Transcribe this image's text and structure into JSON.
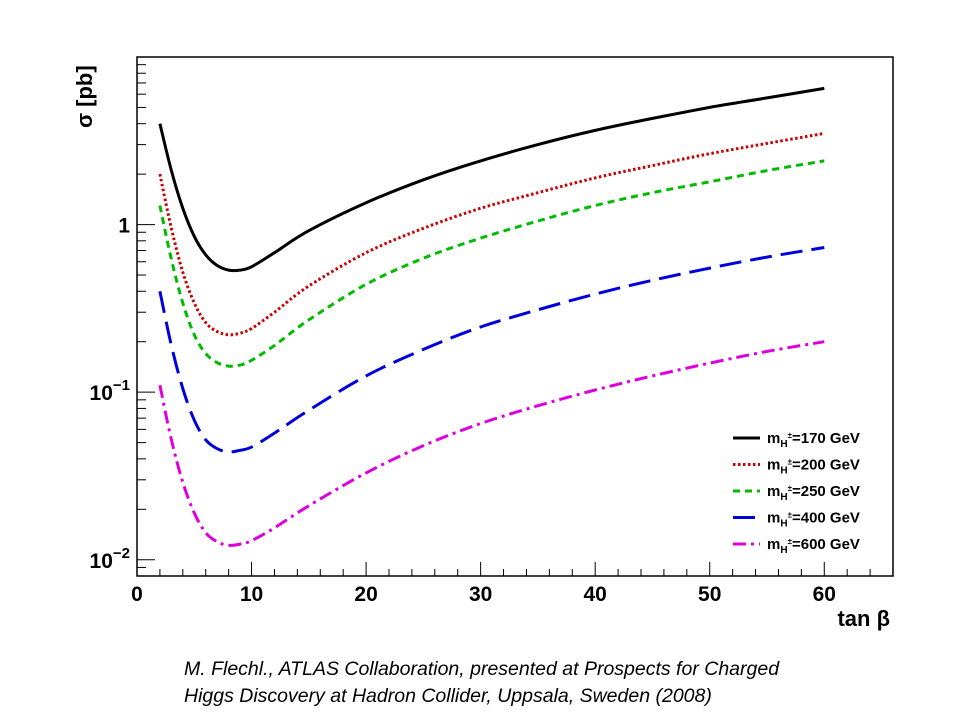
{
  "chart_data": {
    "type": "line",
    "y_scale": "log",
    "xlabel": "tan β",
    "ylabel": "σ [pb]",
    "xlim": [
      0,
      66
    ],
    "ylim": [
      0.008,
      10
    ],
    "x_ticks": [
      0,
      10,
      20,
      30,
      40,
      50,
      60
    ],
    "x_tick_labels": [
      "0",
      "10",
      "20",
      "30",
      "40",
      "50",
      "60"
    ],
    "y_tick_labels": [
      {
        "value": 1,
        "base": "1",
        "exp": ""
      },
      {
        "value": 0.1,
        "base": "10",
        "exp": "−1"
      },
      {
        "value": 0.01,
        "base": "10",
        "exp": "−2"
      }
    ],
    "grid": false,
    "legend_position": "bottom-right",
    "series": [
      {
        "name": "m_{H±}=170 GeV",
        "mass": "170",
        "color": "#000000",
        "style": "solid",
        "x": [
          2,
          3,
          4,
          5,
          6,
          7,
          8,
          9,
          10,
          12,
          15,
          20,
          25,
          30,
          35,
          40,
          45,
          50,
          55,
          60
        ],
        "y": [
          4.0,
          2.1,
          1.25,
          0.85,
          0.66,
          0.57,
          0.535,
          0.535,
          0.56,
          0.68,
          0.92,
          1.35,
          1.85,
          2.4,
          3.0,
          3.65,
          4.3,
          5.0,
          5.7,
          6.5
        ]
      },
      {
        "name": "m_{H±}=200 GeV",
        "mass": "200",
        "color": "#cc0000",
        "style": "dotted",
        "x": [
          2,
          3,
          4,
          5,
          6,
          7,
          8,
          9,
          10,
          12,
          15,
          20,
          25,
          30,
          35,
          40,
          45,
          50,
          55,
          60
        ],
        "y": [
          2.0,
          0.95,
          0.52,
          0.34,
          0.26,
          0.23,
          0.22,
          0.225,
          0.24,
          0.3,
          0.43,
          0.68,
          0.95,
          1.25,
          1.55,
          1.9,
          2.25,
          2.65,
          3.05,
          3.5
        ]
      },
      {
        "name": "m_{H±}=250 GeV",
        "mass": "250",
        "color": "#00bb00",
        "style": "dashed",
        "x": [
          2,
          3,
          4,
          5,
          6,
          7,
          8,
          9,
          10,
          12,
          15,
          20,
          25,
          30,
          35,
          40,
          45,
          50,
          55,
          60
        ],
        "y": [
          1.3,
          0.62,
          0.34,
          0.22,
          0.17,
          0.15,
          0.143,
          0.145,
          0.155,
          0.19,
          0.27,
          0.44,
          0.63,
          0.83,
          1.05,
          1.3,
          1.55,
          1.8,
          2.1,
          2.4
        ]
      },
      {
        "name": "m_{H±}=400 GeV",
        "mass": "400",
        "color": "#0000dd",
        "style": "longdash",
        "x": [
          2,
          3,
          4,
          5,
          6,
          7,
          8,
          9,
          10,
          12,
          15,
          20,
          25,
          30,
          35,
          40,
          45,
          50,
          55,
          60
        ],
        "y": [
          0.4,
          0.19,
          0.105,
          0.068,
          0.052,
          0.046,
          0.044,
          0.045,
          0.047,
          0.057,
          0.078,
          0.125,
          0.18,
          0.245,
          0.31,
          0.385,
          0.465,
          0.55,
          0.64,
          0.73
        ]
      },
      {
        "name": "m_{H±}=600 GeV",
        "mass": "600",
        "color": "#dd00dd",
        "style": "dashdot",
        "x": [
          2,
          3,
          4,
          5,
          6,
          7,
          8,
          9,
          10,
          12,
          15,
          20,
          25,
          30,
          35,
          40,
          45,
          50,
          55,
          60
        ],
        "y": [
          0.11,
          0.052,
          0.029,
          0.019,
          0.0145,
          0.0128,
          0.0122,
          0.0124,
          0.013,
          0.0155,
          0.021,
          0.033,
          0.048,
          0.065,
          0.083,
          0.103,
          0.125,
          0.149,
          0.175,
          0.2
        ]
      }
    ]
  },
  "caption": {
    "line1": "M. Flechl., ATLAS Collaboration,   presented at Prospects for Charged",
    "line2": "Higgs Discovery at Hadron Collider, Uppsala, Sweden (2008)"
  }
}
